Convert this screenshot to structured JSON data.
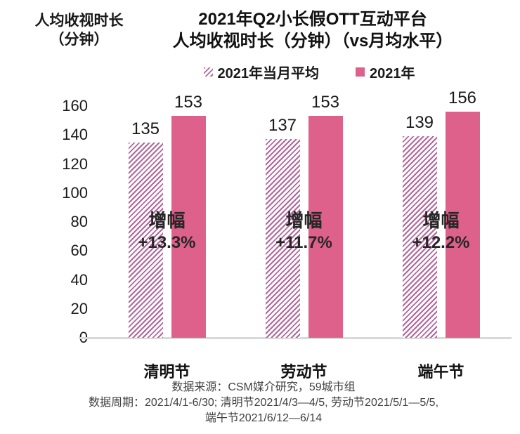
{
  "header": {
    "axis_label_line1": "人均收视时长",
    "axis_label_line2": "（分钟）",
    "title_line1": "2021年Q2小长假OTT互动平台",
    "title_line2": "人均收视时长（分钟）（vs月均水平）"
  },
  "legend": [
    {
      "label": "2021年当月平均",
      "swatch": "hatched"
    },
    {
      "label": "2021年",
      "swatch": "solid"
    }
  ],
  "chart_data": {
    "type": "bar",
    "title": "2021年Q2小长假OTT互动平台 人均收视时长（分钟）（vs月均水平）",
    "ylabel": "人均收视时长（分钟）",
    "categories": [
      "清明节",
      "劳动节",
      "端午节"
    ],
    "series": [
      {
        "name": "2021年当月平均",
        "style": "hatched",
        "values": [
          135,
          137,
          139
        ]
      },
      {
        "name": "2021年",
        "style": "solid",
        "values": [
          153,
          153,
          156
        ]
      }
    ],
    "annotations": [
      {
        "label": "增幅",
        "value": "+13.3%"
      },
      {
        "label": "增幅",
        "value": "+11.7%"
      },
      {
        "label": "增幅",
        "value": "+12.2%"
      }
    ],
    "ylim": [
      0,
      160
    ],
    "yticks": [
      0,
      20,
      40,
      60,
      80,
      100,
      120,
      140,
      160
    ],
    "grid": false,
    "legend_position": "top"
  },
  "colors": {
    "solid_bar": "#de618c",
    "hatch_stripe": "#b2669c",
    "axis_line": "#d9d9d9",
    "text_dark": "#1a1a1a",
    "footer_text": "#404040"
  },
  "footer": {
    "line1": "数据来源：CSM媒介研究，59城市组",
    "line2": "数据周期：2021/4/1-6/30; 清明节2021/4/3—4/5, 劳动节2021/5/1—5/5,",
    "line3": "端午节2021/6/12—6/14"
  }
}
